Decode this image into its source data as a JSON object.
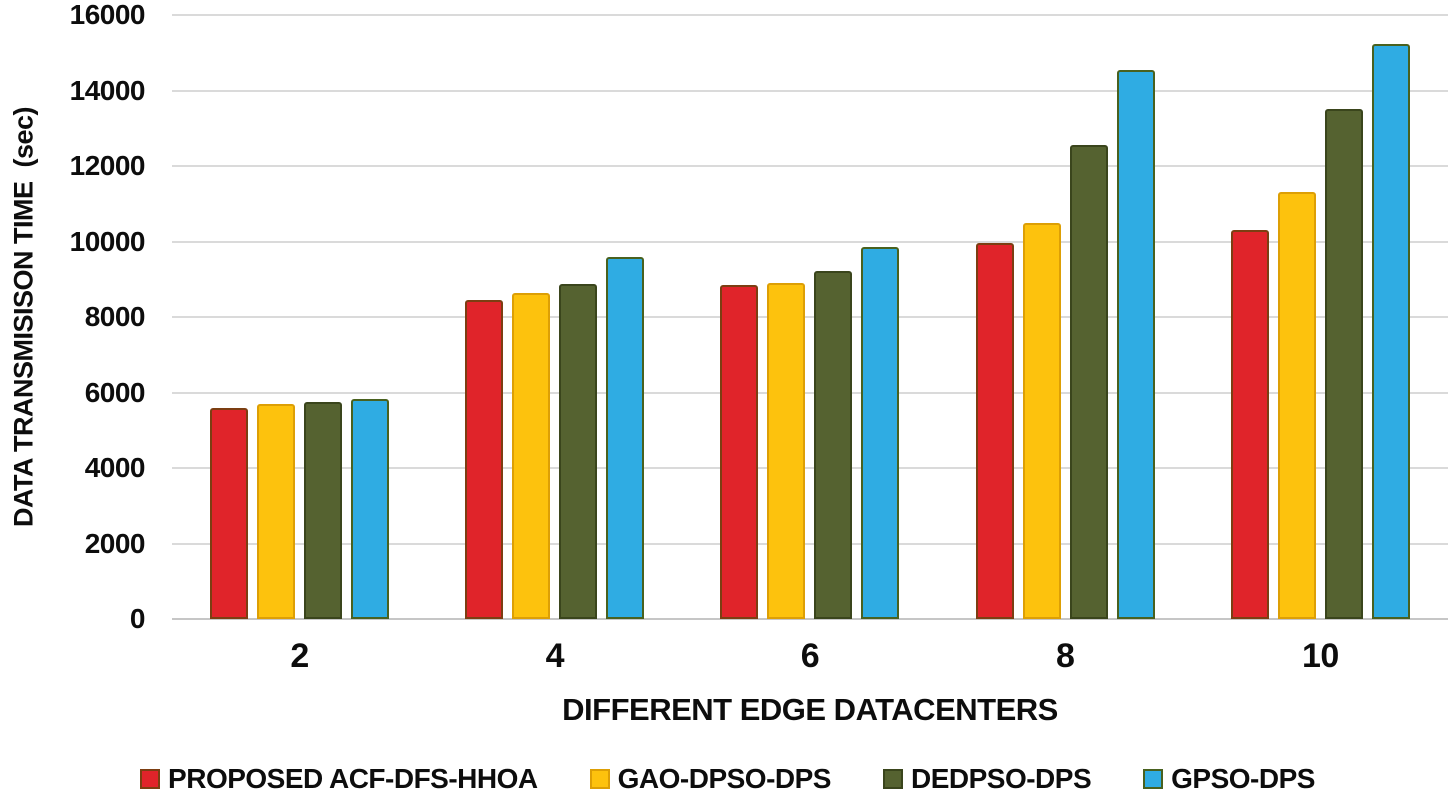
{
  "chart_data": {
    "type": "bar",
    "xlabel": "DIFFERENT EDGE DATACENTERS",
    "ylabel": "DATA TRANSMISISON TIME  (sec)",
    "categories": [
      "2",
      "4",
      "6",
      "8",
      "10"
    ],
    "series": [
      {
        "name": "PROPOSED ACF-DFS-HHOA",
        "color": "#E0242A",
        "border_color": "#7C3E12",
        "values": [
          5580,
          8450,
          8860,
          9960,
          10300
        ]
      },
      {
        "name": "GAO-DPSO-DPS",
        "color": "#FDC20D",
        "border_color": "#DD9F05",
        "values": [
          5700,
          8630,
          8900,
          10480,
          11320
        ]
      },
      {
        "name": "DEDPSO-DPS",
        "color": "#556230",
        "border_color": "#3A451C",
        "values": [
          5760,
          8880,
          9220,
          12560,
          13500
        ]
      },
      {
        "name": "GPSO-DPS",
        "color": "#2FACE3",
        "border_color": "#49611F",
        "values": [
          5830,
          9600,
          9860,
          14540,
          15230
        ]
      }
    ],
    "ylim": [
      0,
      16000
    ],
    "yticks": [
      0,
      2000,
      4000,
      6000,
      8000,
      10000,
      12000,
      14000,
      16000
    ],
    "grid": true,
    "legend_position": "bottom",
    "gridline_color": "#dadada",
    "axis_line_color": "#c6c6c6",
    "text_color": "#0d0d0d",
    "background": "#ffffff"
  }
}
